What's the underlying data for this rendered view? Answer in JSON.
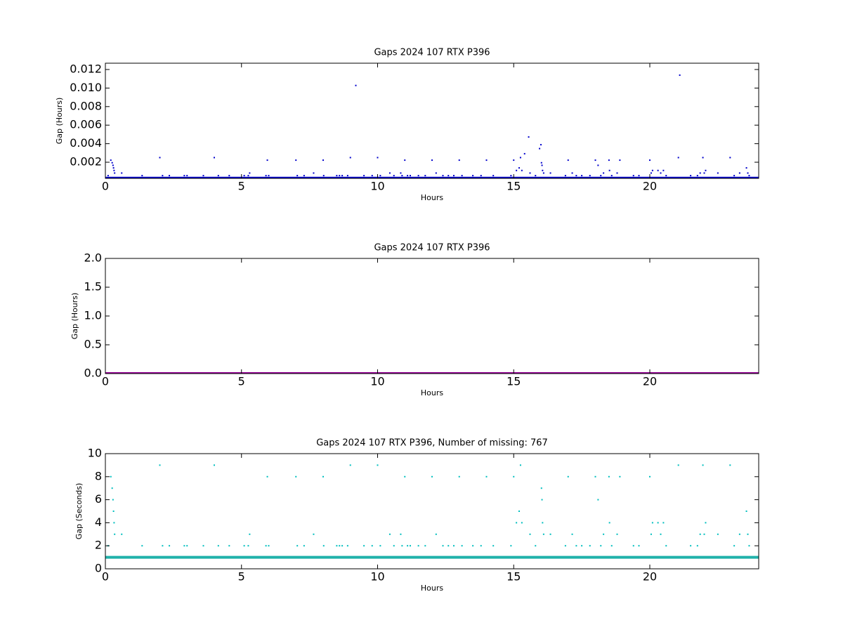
{
  "chart_data": [
    {
      "type": "scatter",
      "title": "Gaps 2024 107 RTX  P396",
      "xlabel": "Hours",
      "ylabel": "Gap (Hours)",
      "xlim": [
        0,
        24
      ],
      "xticks": [
        0,
        5,
        10,
        15,
        20
      ],
      "ylim": [
        0.00026,
        0.01268
      ],
      "yticks": [
        {
          "value": 0.002,
          "label": "0.002"
        },
        {
          "value": 0.004,
          "label": "0.004"
        },
        {
          "value": 0.006,
          "label": "0.006"
        },
        {
          "value": 0.008,
          "label": "0.008"
        },
        {
          "value": 0.01,
          "label": "0.010"
        },
        {
          "value": 0.012,
          "label": "0.012"
        }
      ],
      "series": [
        {
          "type": "line",
          "color": "#0000cc",
          "x": [
            0,
            1,
            2,
            3,
            4,
            5,
            6,
            7,
            8,
            9,
            10,
            11,
            12,
            13,
            14,
            15,
            16,
            17,
            18,
            19,
            20,
            21,
            22,
            23,
            24
          ],
          "values": [
            0.000278,
            0.000278,
            0.000278,
            0.000278,
            0.000278,
            0.000278,
            0.000278,
            0.000278,
            0.000278,
            0.000278,
            0.000278,
            0.000278,
            0.000278,
            0.000278,
            0.000278,
            0.000278,
            0.000278,
            0.000278,
            0.000278,
            0.000278,
            0.000278,
            0.000278,
            0.000278,
            0.000278,
            0.000278
          ]
        },
        {
          "type": "scatter",
          "color": "#0000cc",
          "x": [
            0.1,
            0.2,
            0.25,
            0.28,
            0.3,
            0.32,
            0.34,
            0.6,
            1.35,
            2.0,
            2.1,
            2.35,
            2.9,
            3.0,
            3.6,
            4.0,
            4.15,
            4.55,
            5.1,
            5.25,
            5.3,
            5.9,
            5.95,
            6.0,
            7.0,
            7.05,
            7.3,
            7.65,
            8.0,
            8.02,
            8.5,
            8.6,
            8.7,
            8.9,
            9.0,
            9.2,
            9.5,
            9.8,
            10.0,
            10.1,
            10.45,
            10.6,
            10.85,
            10.9,
            11.0,
            11.1,
            11.2,
            11.5,
            11.75,
            12.0,
            12.15,
            12.4,
            12.6,
            12.8,
            13.0,
            13.1,
            13.5,
            13.8,
            14.0,
            14.25,
            14.9,
            15.0,
            15.1,
            15.2,
            15.25,
            15.3,
            15.4,
            15.55,
            15.6,
            15.8,
            15.95,
            16.0,
            16.02,
            16.04,
            16.06,
            16.1,
            16.35,
            16.9,
            17.0,
            17.15,
            17.3,
            17.5,
            17.8,
            18.0,
            18.1,
            18.2,
            18.3,
            18.5,
            18.52,
            18.6,
            18.8,
            18.9,
            19.4,
            19.6,
            20.0,
            20.05,
            20.1,
            20.3,
            20.4,
            20.5,
            20.6,
            21.05,
            21.1,
            21.5,
            21.75,
            21.85,
            21.95,
            22.0,
            22.05,
            22.5,
            22.95,
            23.1,
            23.3,
            23.55,
            23.6,
            23.65
          ],
          "values": [
            0.000556,
            0.002222,
            0.001944,
            0.001667,
            0.001389,
            0.001111,
            0.000833,
            0.000833,
            0.000556,
            0.0025,
            0.000556,
            0.000556,
            0.000556,
            0.000556,
            0.000556,
            0.0025,
            0.000556,
            0.000556,
            0.000556,
            0.000556,
            0.000833,
            0.000556,
            0.002222,
            0.000556,
            0.002222,
            0.000556,
            0.000556,
            0.000833,
            0.002222,
            0.000556,
            0.000556,
            0.000556,
            0.000556,
            0.000556,
            0.0025,
            0.010278,
            0.000556,
            0.000556,
            0.0025,
            0.000556,
            0.000833,
            0.000556,
            0.000833,
            0.000556,
            0.002222,
            0.000556,
            0.000556,
            0.000556,
            0.000556,
            0.002222,
            0.000833,
            0.000556,
            0.000556,
            0.000556,
            0.002222,
            0.000556,
            0.000556,
            0.000556,
            0.002222,
            0.000556,
            0.000556,
            0.002222,
            0.001111,
            0.001389,
            0.0025,
            0.001111,
            0.002917,
            0.004722,
            0.000833,
            0.000556,
            0.003472,
            0.003889,
            0.001944,
            0.001667,
            0.001111,
            0.000833,
            0.000833,
            0.000556,
            0.002222,
            0.000833,
            0.000556,
            0.000556,
            0.000556,
            0.002222,
            0.001667,
            0.000556,
            0.000833,
            0.002222,
            0.001111,
            0.000556,
            0.000833,
            0.002222,
            0.000556,
            0.000556,
            0.002222,
            0.000833,
            0.001111,
            0.001111,
            0.000833,
            0.001111,
            0.000556,
            0.0025,
            0.011389,
            0.000556,
            0.000556,
            0.000833,
            0.0025,
            0.000833,
            0.001111,
            0.000833,
            0.0025,
            0.000556,
            0.000833,
            0.001389,
            0.000833,
            0.000556
          ]
        }
      ]
    },
    {
      "type": "scatter",
      "title": "Gaps 2024 107 RTX  P396",
      "xlabel": "Hours",
      "ylabel": "Gap (Hours)",
      "xlim": [
        0,
        24
      ],
      "xticks": [
        0,
        5,
        10,
        15,
        20
      ],
      "ylim": [
        0,
        2
      ],
      "yticks": [
        {
          "value": 0,
          "label": "0.0"
        },
        {
          "value": 0.5,
          "label": "0.5"
        },
        {
          "value": 1,
          "label": "1.0"
        },
        {
          "value": 1.5,
          "label": "1.5"
        },
        {
          "value": 2,
          "label": "2.0"
        }
      ],
      "series": [
        {
          "type": "line",
          "color": "#990099",
          "x": [
            0,
            1,
            2,
            3,
            4,
            5,
            6,
            7,
            8,
            9,
            10,
            11,
            12,
            13,
            14,
            15,
            16,
            17,
            18,
            19,
            20,
            21,
            22,
            23,
            24
          ],
          "values": [
            0,
            0,
            0,
            0,
            0,
            0,
            0,
            0,
            0,
            0,
            0,
            0,
            0,
            0,
            0,
            0,
            0,
            0,
            0,
            0,
            0,
            0,
            0,
            0,
            0
          ]
        }
      ]
    },
    {
      "type": "scatter",
      "title": "Gaps 2024 107 RTX  P396, Number of missing: 767",
      "xlabel": "Hours",
      "ylabel": "Gap (Seconds)",
      "xlim": [
        0,
        24
      ],
      "xticks": [
        0,
        5,
        10,
        15,
        20
      ],
      "ylim": [
        0,
        10
      ],
      "yticks": [
        0,
        2,
        4,
        6,
        8,
        10
      ],
      "series": [
        {
          "type": "line",
          "color": "#20b2aa",
          "x": [
            0,
            1,
            2,
            3,
            4,
            5,
            6,
            7,
            8,
            9,
            10,
            11,
            12,
            13,
            14,
            15,
            16,
            17,
            18,
            19,
            20,
            21,
            22,
            23,
            24
          ],
          "values": [
            1,
            1,
            1,
            1,
            1,
            1,
            1,
            1,
            1,
            1,
            1,
            1,
            1,
            1,
            1,
            1,
            1,
            1,
            1,
            1,
            1,
            1,
            1,
            1,
            1
          ]
        },
        {
          "type": "scatter",
          "color": "#00bfbf",
          "x": [
            0.1,
            0.2,
            0.25,
            0.28,
            0.3,
            0.32,
            0.34,
            0.6,
            1.35,
            2.0,
            2.1,
            2.35,
            2.9,
            3.0,
            3.6,
            4.0,
            4.15,
            4.55,
            5.1,
            5.25,
            5.3,
            5.9,
            5.95,
            6.0,
            7.0,
            7.05,
            7.3,
            7.65,
            8.0,
            8.02,
            8.5,
            8.6,
            8.7,
            8.9,
            9.0,
            9.5,
            9.8,
            10.0,
            10.1,
            10.45,
            10.6,
            10.85,
            10.9,
            11.0,
            11.1,
            11.2,
            11.5,
            11.75,
            12.0,
            12.15,
            12.4,
            12.6,
            12.8,
            13.0,
            13.1,
            13.5,
            13.8,
            14.0,
            14.25,
            14.9,
            15.0,
            15.1,
            15.2,
            15.25,
            15.3,
            15.6,
            15.8,
            16.02,
            16.04,
            16.06,
            16.1,
            16.35,
            16.9,
            17.0,
            17.15,
            17.3,
            17.5,
            17.8,
            18.0,
            18.1,
            18.2,
            18.3,
            18.5,
            18.52,
            18.6,
            18.8,
            18.9,
            19.4,
            19.6,
            20.0,
            20.05,
            20.1,
            20.3,
            20.4,
            20.5,
            20.6,
            21.05,
            21.5,
            21.75,
            21.85,
            21.95,
            22.0,
            22.05,
            22.5,
            22.95,
            23.1,
            23.3,
            23.55,
            23.6,
            23.65
          ],
          "values": [
            2,
            8,
            7,
            6,
            5,
            4,
            3,
            3,
            2,
            9,
            2,
            2,
            2,
            2,
            2,
            9,
            2,
            2,
            2,
            2,
            3,
            2,
            8,
            2,
            8,
            2,
            2,
            3,
            8,
            2,
            2,
            2,
            2,
            2,
            9,
            2,
            2,
            9,
            2,
            3,
            2,
            3,
            2,
            8,
            2,
            2,
            2,
            2,
            8,
            3,
            2,
            2,
            2,
            8,
            2,
            2,
            2,
            8,
            2,
            2,
            8,
            4,
            5,
            9,
            4,
            3,
            2,
            7,
            6,
            4,
            3,
            3,
            2,
            8,
            3,
            2,
            2,
            2,
            8,
            6,
            2,
            3,
            8,
            4,
            2,
            3,
            8,
            2,
            2,
            8,
            3,
            4,
            4,
            3,
            4,
            2,
            9,
            2,
            2,
            3,
            9,
            3,
            4,
            3,
            9,
            2,
            3,
            5,
            3,
            2
          ]
        }
      ]
    }
  ]
}
